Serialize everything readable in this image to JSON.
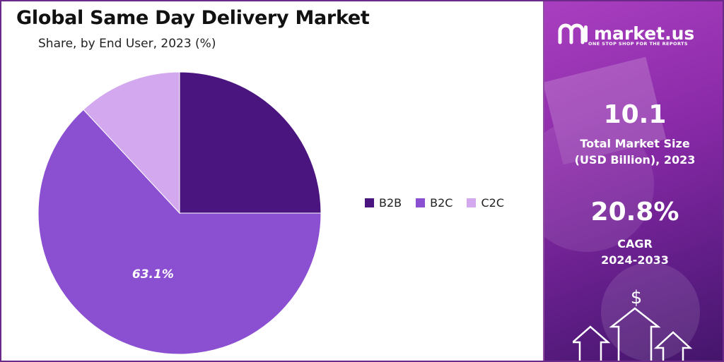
{
  "title": "Global Same Day Delivery Market",
  "subtitle": "Share, by End User, 2023 (%)",
  "chart_data": {
    "type": "pie",
    "categories": [
      "B2B",
      "B2C",
      "C2C"
    ],
    "values": [
      25.0,
      63.1,
      11.9
    ],
    "data_labels": [
      "",
      "63.1%",
      ""
    ],
    "colors": [
      "#4b1580",
      "#8b4fd1",
      "#d3a8ee"
    ],
    "legend_position": "right"
  },
  "brand": {
    "name": "market.us",
    "tagline": "ONE STOP SHOP FOR THE REPORTS"
  },
  "stats": {
    "market_size_value": "10.1",
    "market_size_label_1": "Total Market Size",
    "market_size_label_2": "(USD Billion), 2023",
    "cagr_value": "20.8%",
    "cagr_label_1": "CAGR",
    "cagr_label_2": "2024-2033"
  },
  "icons": {
    "dollar": "dollar-icon",
    "arrows": "growth-arrows-icon",
    "logo": "market-us-logo-icon"
  }
}
